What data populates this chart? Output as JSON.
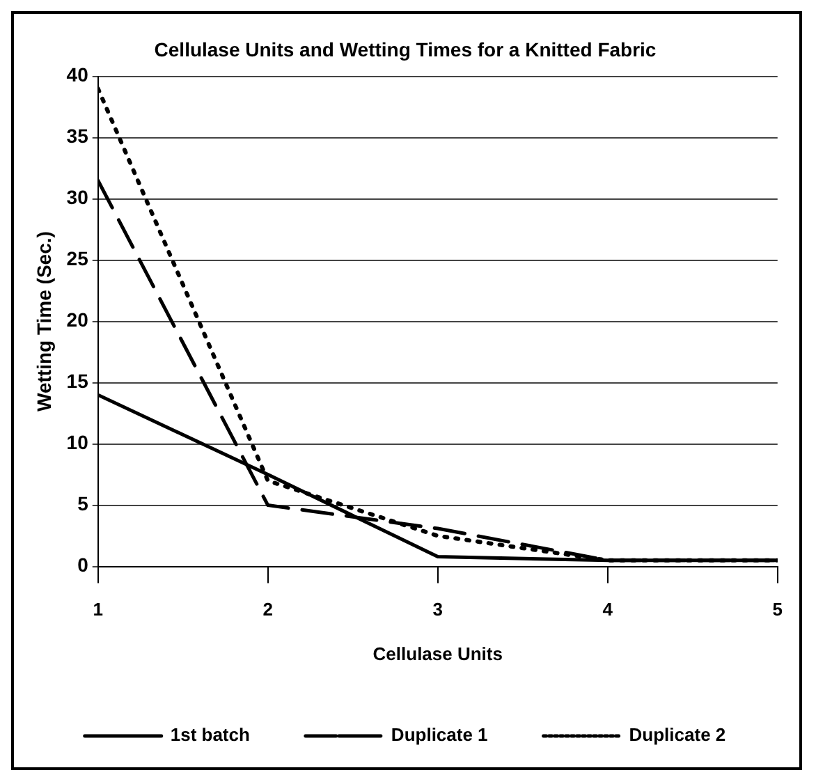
{
  "chart_data": {
    "type": "line",
    "title": "Cellulase Units and Wetting Times for a Knitted Fabric",
    "xlabel": "Cellulase Units",
    "ylabel": "Wetting Time (Sec.)",
    "x": [
      1,
      2,
      3,
      4,
      5
    ],
    "xlim": [
      1,
      5
    ],
    "xticks": [
      1,
      2,
      3,
      4,
      5
    ],
    "ylim": [
      0,
      40
    ],
    "yticks": [
      0,
      5,
      10,
      15,
      20,
      25,
      30,
      35,
      40
    ],
    "series": [
      {
        "name": "1st batch",
        "color": "#000000",
        "line_style": "solid",
        "values": [
          14,
          7.5,
          0.8,
          0.5,
          0.5
        ]
      },
      {
        "name": "Duplicate 1",
        "color": "#000000",
        "line_style": "dashed",
        "values": [
          31.5,
          5,
          3.1,
          0.5,
          0.5
        ]
      },
      {
        "name": "Duplicate 2",
        "color": "#000000",
        "line_style": "dotted",
        "values": [
          39,
          7,
          2.5,
          0.5,
          0.5
        ]
      }
    ],
    "grid": "y",
    "legend": "bottom",
    "marker": "none"
  }
}
